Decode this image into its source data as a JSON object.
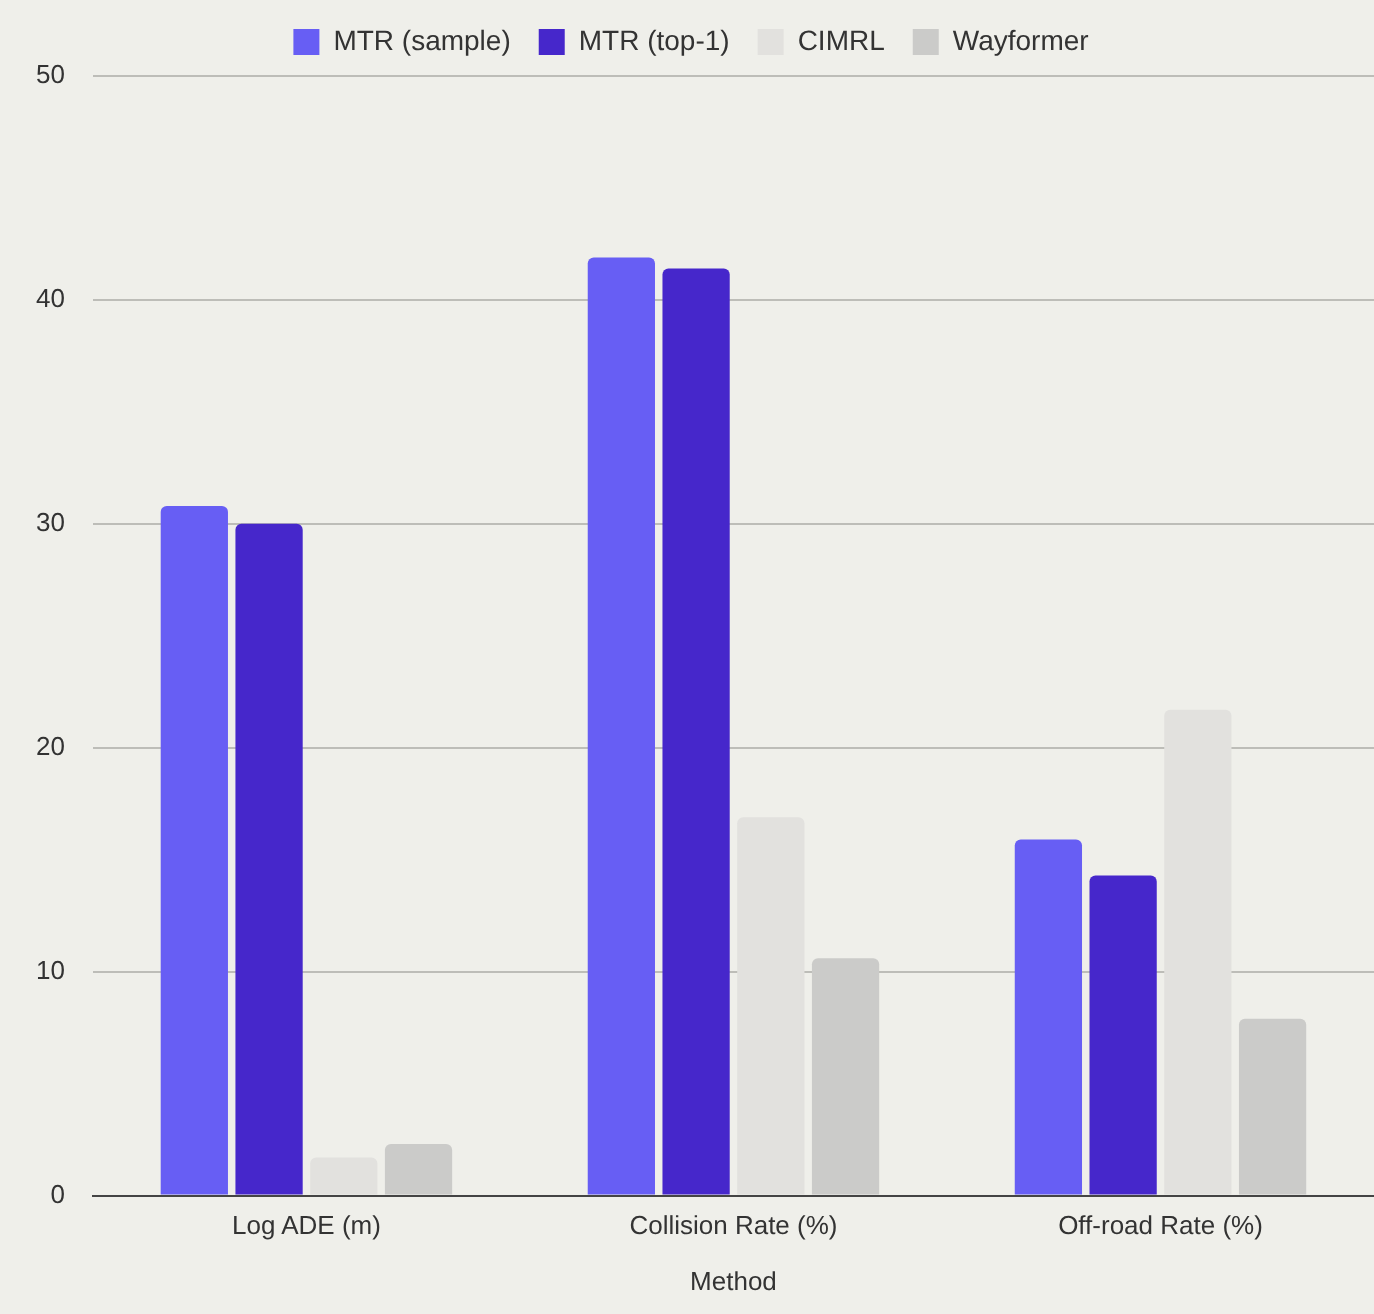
{
  "chart_data": {
    "type": "bar",
    "xlabel": "Method",
    "categories": [
      "Log ADE (m)",
      "Collision Rate (%)",
      "Off-road Rate (%)"
    ],
    "series": [
      {
        "name": "MTR (sample)",
        "color": "#675ef4",
        "values": [
          30.8,
          41.9,
          15.9
        ]
      },
      {
        "name": "MTR (top-1)",
        "color": "#4627cb",
        "values": [
          30.0,
          41.4,
          14.3
        ]
      },
      {
        "name": "CIMRL",
        "color": "#e2e1de",
        "values": [
          1.7,
          16.9,
          21.7
        ]
      },
      {
        "name": "Wayformer",
        "color": "#cbcbc9",
        "values": [
          2.3,
          10.6,
          7.9
        ]
      }
    ],
    "ylim": [
      0,
      50
    ],
    "yticks": [
      0,
      10,
      20,
      30,
      40,
      50
    ],
    "grid": "y",
    "legend": "top"
  }
}
